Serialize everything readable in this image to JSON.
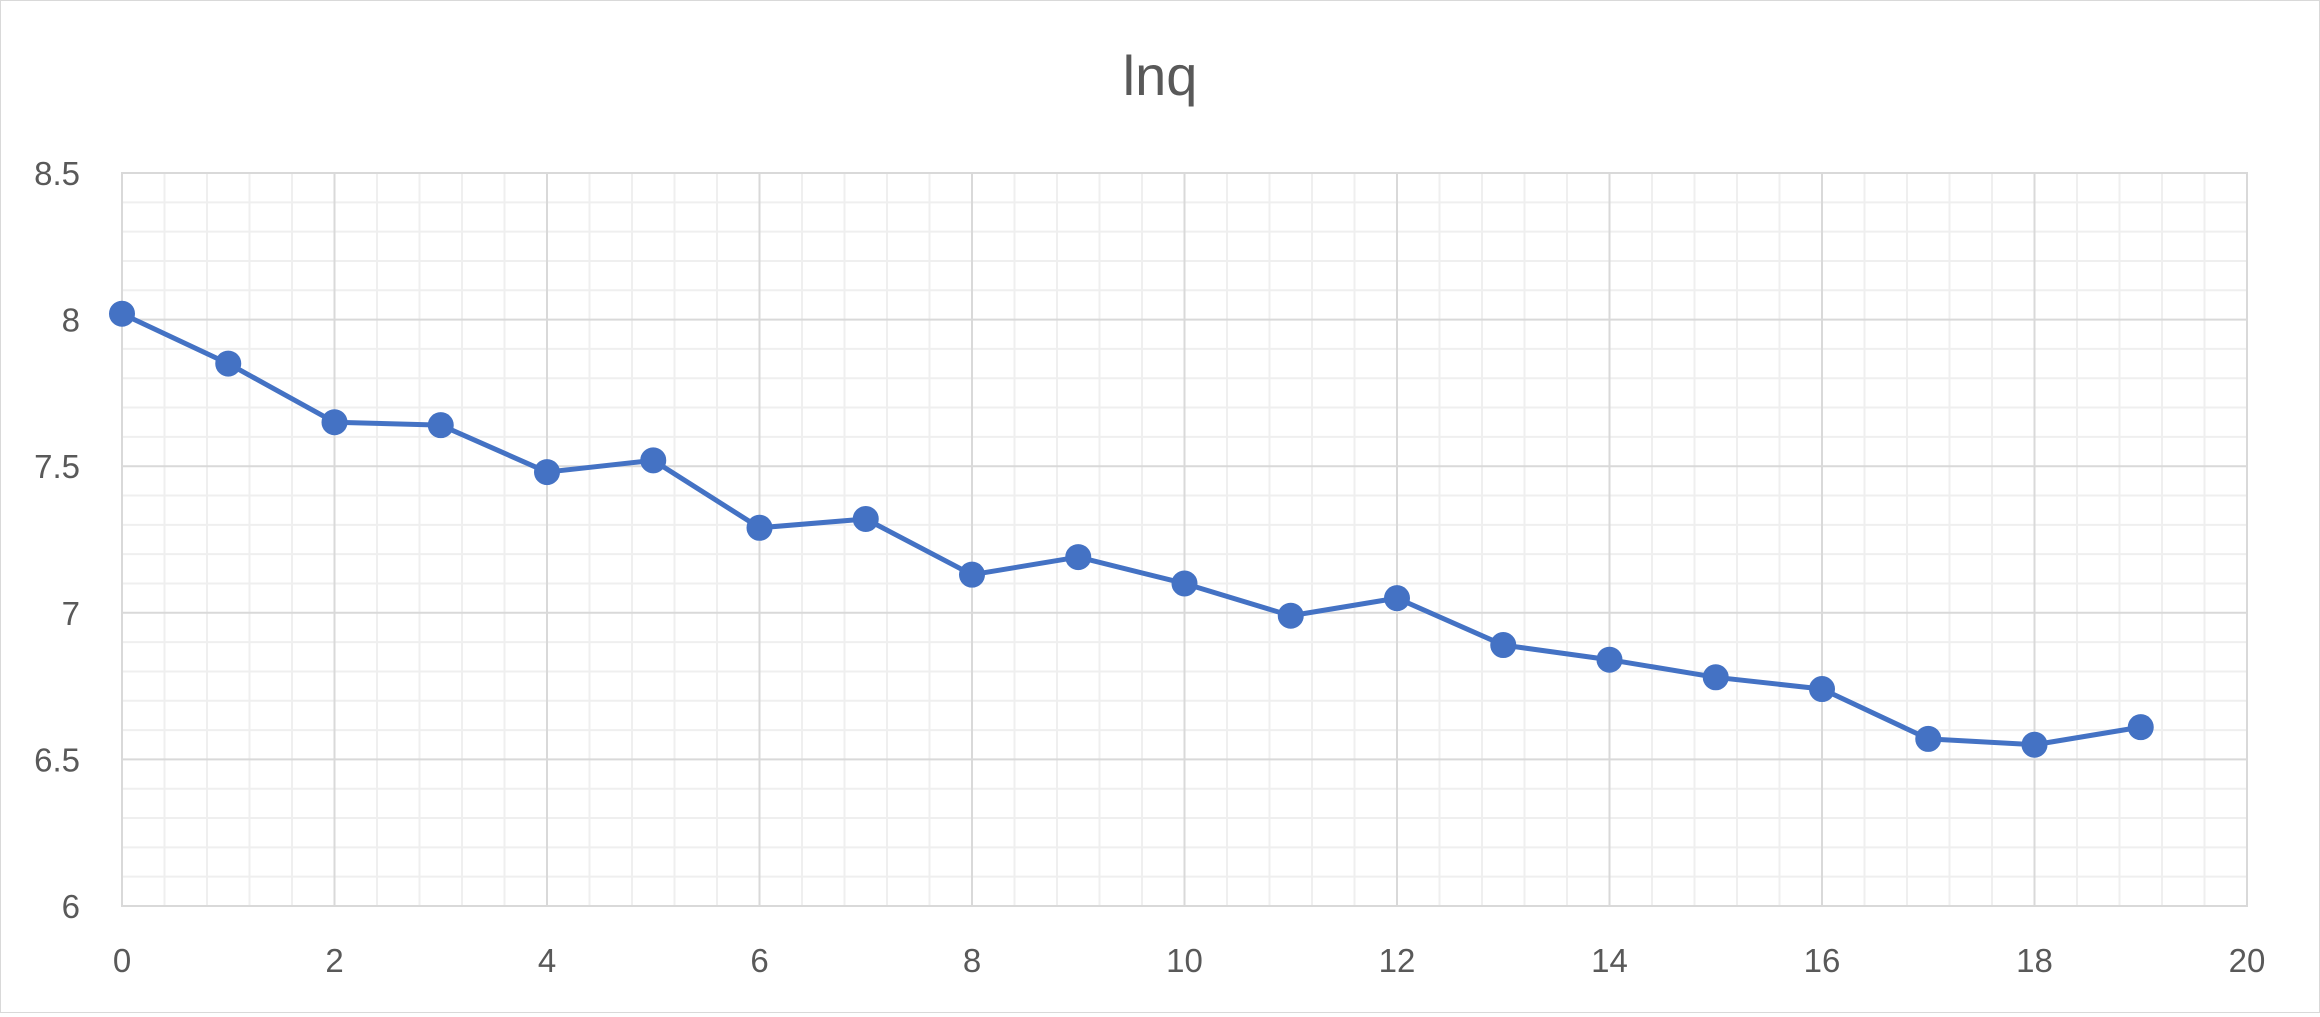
{
  "chart_data": {
    "type": "scatter",
    "title": "lnq",
    "xlabel": "",
    "ylabel": "",
    "xlim": [
      0,
      20
    ],
    "ylim": [
      6,
      8.5
    ],
    "x_major_step": 2,
    "x_minor_step": 0.4,
    "y_major_step": 0.5,
    "y_minor_step": 0.1,
    "grid": true,
    "legend": false,
    "line_color": "#4472C4",
    "x_tick_labels": [
      "0",
      "2",
      "4",
      "6",
      "8",
      "10",
      "12",
      "14",
      "16",
      "18",
      "20"
    ],
    "y_tick_labels": [
      "6",
      "6.5",
      "7",
      "7.5",
      "8",
      "8.5"
    ],
    "series": [
      {
        "x": [
          0,
          1,
          2,
          3,
          4,
          5,
          6,
          7,
          8,
          9,
          10,
          11,
          12,
          13,
          14,
          15,
          16,
          17,
          18,
          19
        ],
        "y": [
          8.02,
          7.85,
          7.65,
          7.64,
          7.48,
          7.52,
          7.29,
          7.32,
          7.13,
          7.19,
          7.1,
          6.99,
          7.05,
          6.89,
          6.84,
          6.78,
          6.74,
          6.57,
          6.55,
          6.61
        ]
      }
    ]
  }
}
